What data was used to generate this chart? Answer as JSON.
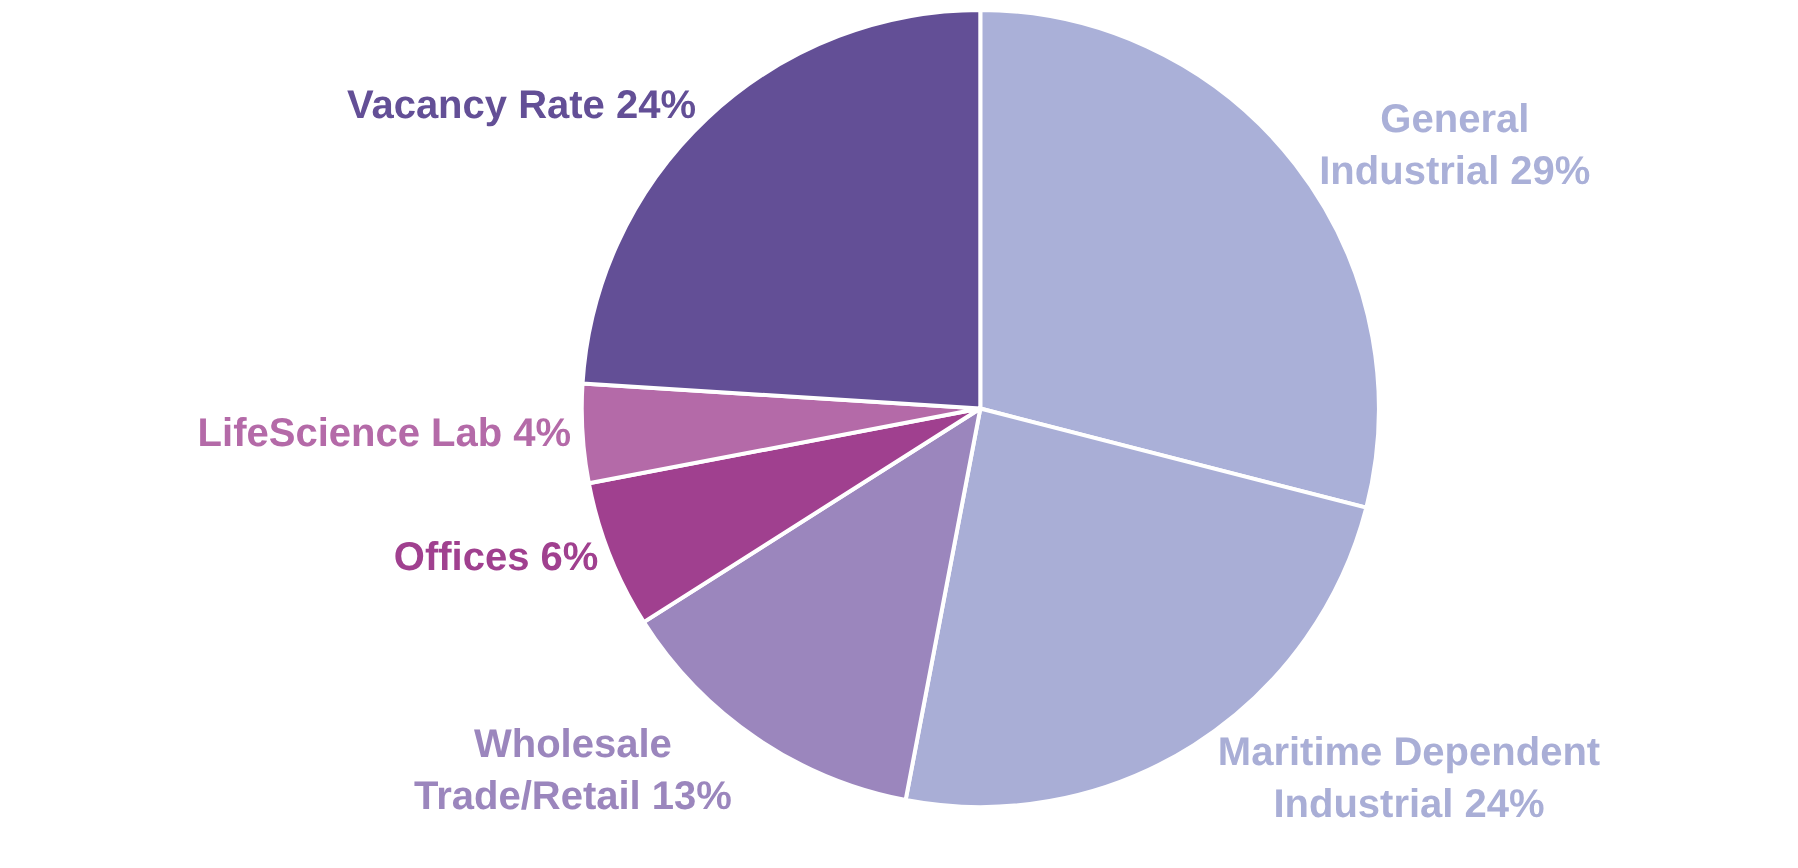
{
  "chart_data": {
    "type": "pie",
    "categories": [
      "General Industrial",
      "Maritime Dependent Industrial",
      "Wholesale Trade/Retail",
      "Offices",
      "LifeScience Lab",
      "Vacancy Rate"
    ],
    "values": [
      29,
      24,
      13,
      6,
      4,
      24
    ],
    "value_labels": [
      "29%",
      "24%",
      "13%",
      "6%",
      "4%",
      "24%"
    ],
    "colors": [
      "#aab0d8",
      "#a9aed6",
      "#9b86bd",
      "#a0408f",
      "#b46aa8",
      "#634f96"
    ],
    "legend": false
  }
}
